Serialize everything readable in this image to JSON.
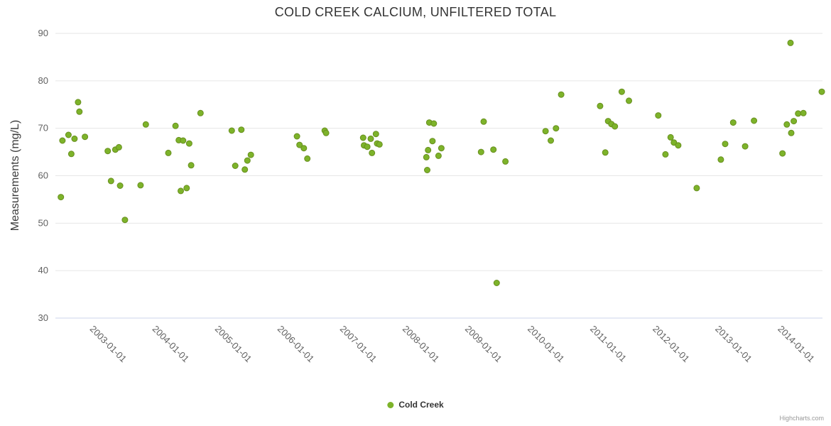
{
  "title": "COLD CREEK CALCIUM, UNFILTERED TOTAL",
  "legend": {
    "series_label": "Cold Creek"
  },
  "credits": "Highcharts.com",
  "colors": {
    "point_fill": "#7db32a",
    "point_border": "#688f1f",
    "grid": "#e6e6e6",
    "axis_line": "#ccd6eb",
    "tick_text": "#606060",
    "title_text": "#333333"
  },
  "chart_data": {
    "type": "scatter",
    "title": "COLD CREEK CALCIUM, UNFILTERED TOTAL",
    "xlabel": "",
    "ylabel": "Measurements (mg/L)",
    "ylim": [
      30,
      90
    ],
    "y_ticks": [
      30,
      40,
      50,
      60,
      70,
      80,
      90
    ],
    "x_ticks": [
      "2003-01-01",
      "2004-01-01",
      "2005-01-01",
      "2006-01-01",
      "2007-01-01",
      "2008-01-01",
      "2009-01-01",
      "2010-01-01",
      "2011-01-01",
      "2012-01-01",
      "2013-01-01",
      "2014-01-01"
    ],
    "x_range": [
      "2002-05-30",
      "2014-09-05"
    ],
    "grid": "horizontal",
    "legend_position": "bottom-center",
    "series": [
      {
        "name": "Cold Creek",
        "points": [
          [
            "2002-07-01",
            55.5
          ],
          [
            "2002-07-10",
            67.4
          ],
          [
            "2002-08-15",
            68.6
          ],
          [
            "2002-09-01",
            64.6
          ],
          [
            "2002-09-20",
            67.8
          ],
          [
            "2002-10-10",
            75.5
          ],
          [
            "2002-10-18",
            73.5
          ],
          [
            "2002-11-20",
            68.2
          ],
          [
            "2003-04-01",
            65.2
          ],
          [
            "2003-04-20",
            58.9
          ],
          [
            "2003-05-15",
            65.5
          ],
          [
            "2003-06-05",
            66.0
          ],
          [
            "2003-06-12",
            57.9
          ],
          [
            "2003-07-10",
            50.7
          ],
          [
            "2003-10-10",
            58.0
          ],
          [
            "2003-11-10",
            70.8
          ],
          [
            "2004-03-20",
            64.8
          ],
          [
            "2004-05-01",
            70.5
          ],
          [
            "2004-05-20",
            67.5
          ],
          [
            "2004-06-01",
            56.8
          ],
          [
            "2004-06-15",
            67.4
          ],
          [
            "2004-07-05",
            57.4
          ],
          [
            "2004-07-20",
            66.8
          ],
          [
            "2004-08-01",
            62.2
          ],
          [
            "2004-09-25",
            73.2
          ],
          [
            "2005-03-25",
            69.5
          ],
          [
            "2005-04-15",
            62.1
          ],
          [
            "2005-05-20",
            69.7
          ],
          [
            "2005-06-10",
            61.3
          ],
          [
            "2005-06-25",
            63.2
          ],
          [
            "2005-07-15",
            64.4
          ],
          [
            "2006-04-10",
            68.3
          ],
          [
            "2006-04-25",
            66.5
          ],
          [
            "2006-05-20",
            65.8
          ],
          [
            "2006-06-10",
            63.6
          ],
          [
            "2006-09-20",
            69.5
          ],
          [
            "2006-09-28",
            69.0
          ],
          [
            "2007-05-01",
            68.0
          ],
          [
            "2007-05-06",
            66.4
          ],
          [
            "2007-05-25",
            66.1
          ],
          [
            "2007-06-15",
            67.8
          ],
          [
            "2007-06-22",
            64.8
          ],
          [
            "2007-07-15",
            68.8
          ],
          [
            "2007-07-22",
            66.8
          ],
          [
            "2007-08-05",
            66.6
          ],
          [
            "2008-05-05",
            63.9
          ],
          [
            "2008-05-10",
            61.2
          ],
          [
            "2008-05-15",
            65.4
          ],
          [
            "2008-05-22",
            71.2
          ],
          [
            "2008-06-10",
            67.3
          ],
          [
            "2008-06-18",
            71.0
          ],
          [
            "2008-07-15",
            64.2
          ],
          [
            "2008-08-01",
            65.8
          ],
          [
            "2009-03-20",
            65.0
          ],
          [
            "2009-04-05",
            71.4
          ],
          [
            "2009-06-01",
            65.5
          ],
          [
            "2009-06-20",
            37.4
          ],
          [
            "2009-08-10",
            63.0
          ],
          [
            "2010-04-01",
            69.4
          ],
          [
            "2010-05-01",
            67.4
          ],
          [
            "2010-06-01",
            70.0
          ],
          [
            "2010-07-01",
            77.1
          ],
          [
            "2011-02-15",
            74.7
          ],
          [
            "2011-03-15",
            64.9
          ],
          [
            "2011-04-01",
            71.5
          ],
          [
            "2011-04-20",
            70.9
          ],
          [
            "2011-05-10",
            70.4
          ],
          [
            "2011-06-20",
            77.7
          ],
          [
            "2011-08-01",
            75.8
          ],
          [
            "2012-01-20",
            72.7
          ],
          [
            "2012-03-01",
            64.5
          ],
          [
            "2012-04-01",
            68.1
          ],
          [
            "2012-04-20",
            67.0
          ],
          [
            "2012-05-15",
            66.4
          ],
          [
            "2012-09-01",
            57.4
          ],
          [
            "2013-01-20",
            63.4
          ],
          [
            "2013-02-15",
            66.7
          ],
          [
            "2013-04-01",
            71.2
          ],
          [
            "2013-06-10",
            66.2
          ],
          [
            "2013-08-01",
            71.6
          ],
          [
            "2014-01-15",
            64.7
          ],
          [
            "2014-02-10",
            70.8
          ],
          [
            "2014-03-01",
            88.0
          ],
          [
            "2014-03-05",
            69.0
          ],
          [
            "2014-03-20",
            71.5
          ],
          [
            "2014-04-15",
            73.1
          ],
          [
            "2014-05-15",
            73.2
          ],
          [
            "2014-09-01",
            77.7
          ]
        ]
      }
    ]
  }
}
